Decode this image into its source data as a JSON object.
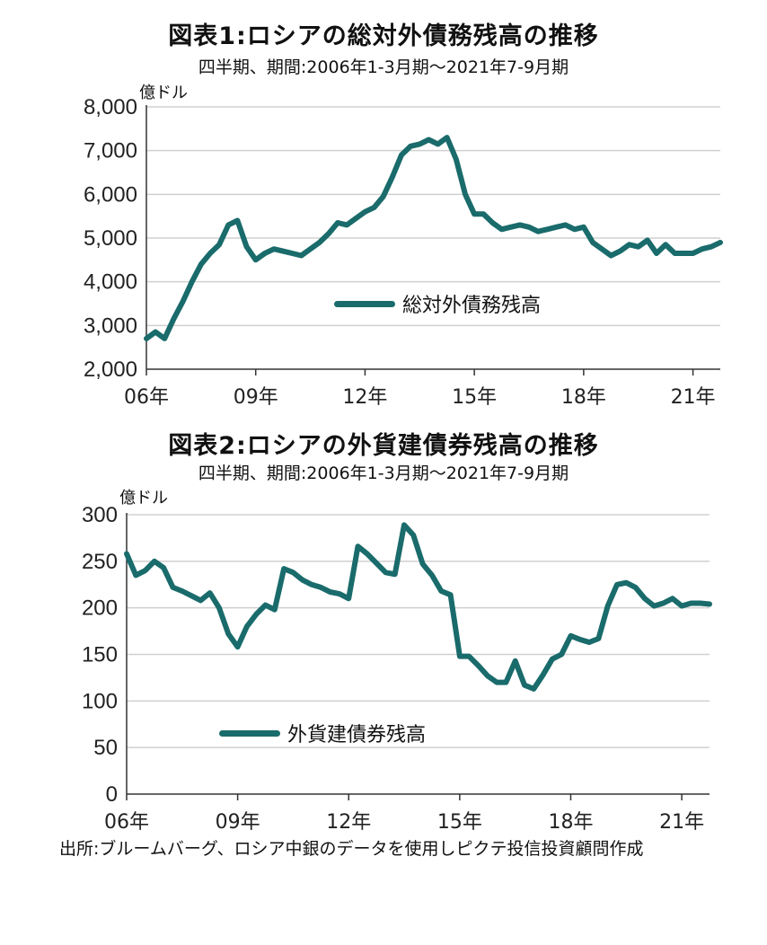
{
  "charts": [
    {
      "title": "図表1:ロシアの総対外債務残高の推移",
      "subtitle": "四半期、期間:2006年1-3月期～2021年7-9月期",
      "unit": "億ドル",
      "legend": "総対外債務残高"
    },
    {
      "title": "図表2:ロシアの外貨建債券残高の推移",
      "subtitle": "四半期、期間:2006年1-3月期～2021年7-9月期",
      "unit": "億ドル",
      "legend": "外貨建債券残高"
    }
  ],
  "source": "出所:ブルームバーグ、ロシア中銀のデータを使用しピクテ投信投資顧問作成",
  "colors": {
    "series": "#1a6b6b",
    "grid": "#d0d0d0",
    "axis": "#333333"
  },
  "chart_data": [
    {
      "type": "line",
      "title": "図表1:ロシアの総対外債務残高の推移",
      "subtitle": "四半期、期間:2006年1-3月期～2021年7-9月期",
      "ylabel": "億ドル",
      "ylim": [
        2000,
        8000
      ],
      "xlim": [
        2006.0,
        2021.75
      ],
      "yticks": [
        2000,
        3000,
        4000,
        5000,
        6000,
        7000,
        8000
      ],
      "ytick_labels": [
        "2,000",
        "3,000",
        "4,000",
        "5,000",
        "6,000",
        "7,000",
        "8,000"
      ],
      "xticks": [
        2006,
        2009,
        2012,
        2015,
        2018,
        2021
      ],
      "xtick_labels": [
        "06年",
        "09年",
        "12年",
        "15年",
        "18年",
        "21年"
      ],
      "grid": "horizontal",
      "legend_position": "center",
      "series": [
        {
          "name": "総対外債務残高",
          "x": [
            2006.0,
            2006.25,
            2006.5,
            2006.75,
            2007.0,
            2007.25,
            2007.5,
            2007.75,
            2008.0,
            2008.25,
            2008.5,
            2008.75,
            2009.0,
            2009.25,
            2009.5,
            2009.75,
            2010.0,
            2010.25,
            2010.5,
            2010.75,
            2011.0,
            2011.25,
            2011.5,
            2011.75,
            2012.0,
            2012.25,
            2012.5,
            2012.75,
            2013.0,
            2013.25,
            2013.5,
            2013.75,
            2014.0,
            2014.25,
            2014.5,
            2014.75,
            2015.0,
            2015.25,
            2015.5,
            2015.75,
            2016.0,
            2016.25,
            2016.5,
            2016.75,
            2017.0,
            2017.25,
            2017.5,
            2017.75,
            2018.0,
            2018.25,
            2018.5,
            2018.75,
            2019.0,
            2019.25,
            2019.5,
            2019.75,
            2020.0,
            2020.25,
            2020.5,
            2020.75,
            2021.0,
            2021.25,
            2021.5,
            2021.75
          ],
          "values": [
            2700,
            2850,
            2700,
            3150,
            3550,
            4000,
            4400,
            4650,
            4850,
            5300,
            5400,
            4800,
            4500,
            4650,
            4750,
            4700,
            4650,
            4600,
            4750,
            4900,
            5100,
            5350,
            5300,
            5450,
            5600,
            5700,
            5950,
            6400,
            6900,
            7100,
            7150,
            7250,
            7150,
            7300,
            6800,
            6000,
            5550,
            5550,
            5350,
            5200,
            5250,
            5300,
            5250,
            5150,
            5200,
            5250,
            5300,
            5200,
            5250,
            4900,
            4750,
            4600,
            4700,
            4850,
            4800,
            4950,
            4650,
            4850,
            4650,
            4650,
            4650,
            4750,
            4800,
            4900
          ]
        }
      ]
    },
    {
      "type": "line",
      "title": "図表2:ロシアの外貨建債券残高の推移",
      "subtitle": "四半期、期間:2006年1-3月期～2021年7-9月期",
      "ylabel": "億ドル",
      "ylim": [
        0,
        300
      ],
      "xlim": [
        2006.0,
        2021.75
      ],
      "yticks": [
        0,
        50,
        100,
        150,
        200,
        250,
        300
      ],
      "ytick_labels": [
        "0",
        "50",
        "100",
        "150",
        "200",
        "250",
        "300"
      ],
      "xticks": [
        2006,
        2009,
        2012,
        2015,
        2018,
        2021
      ],
      "xtick_labels": [
        "06年",
        "09年",
        "12年",
        "15年",
        "18年",
        "21年"
      ],
      "grid": "horizontal",
      "legend_position": "lower-left",
      "series": [
        {
          "name": "外貨建債券残高",
          "x": [
            2006.0,
            2006.25,
            2006.5,
            2006.75,
            2007.0,
            2007.25,
            2007.5,
            2007.75,
            2008.0,
            2008.25,
            2008.5,
            2008.75,
            2009.0,
            2009.25,
            2009.5,
            2009.75,
            2010.0,
            2010.25,
            2010.5,
            2010.75,
            2011.0,
            2011.25,
            2011.5,
            2011.75,
            2012.0,
            2012.25,
            2012.5,
            2012.75,
            2013.0,
            2013.25,
            2013.5,
            2013.75,
            2014.0,
            2014.25,
            2014.5,
            2014.75,
            2015.0,
            2015.25,
            2015.5,
            2015.75,
            2016.0,
            2016.25,
            2016.5,
            2016.75,
            2017.0,
            2017.25,
            2017.5,
            2017.75,
            2018.0,
            2018.25,
            2018.5,
            2018.75,
            2019.0,
            2019.25,
            2019.5,
            2019.75,
            2020.0,
            2020.25,
            2020.5,
            2020.75,
            2021.0,
            2021.25,
            2021.5,
            2021.75
          ],
          "values": [
            258,
            235,
            240,
            250,
            243,
            222,
            218,
            213,
            208,
            216,
            200,
            172,
            158,
            180,
            193,
            203,
            198,
            242,
            238,
            230,
            225,
            222,
            217,
            215,
            210,
            266,
            258,
            248,
            238,
            236,
            289,
            278,
            247,
            235,
            218,
            214,
            148,
            148,
            138,
            127,
            120,
            120,
            143,
            117,
            113,
            128,
            145,
            150,
            170,
            166,
            163,
            167,
            202,
            225,
            227,
            222,
            210,
            202,
            205,
            210,
            202,
            205,
            205,
            204
          ]
        }
      ]
    }
  ]
}
